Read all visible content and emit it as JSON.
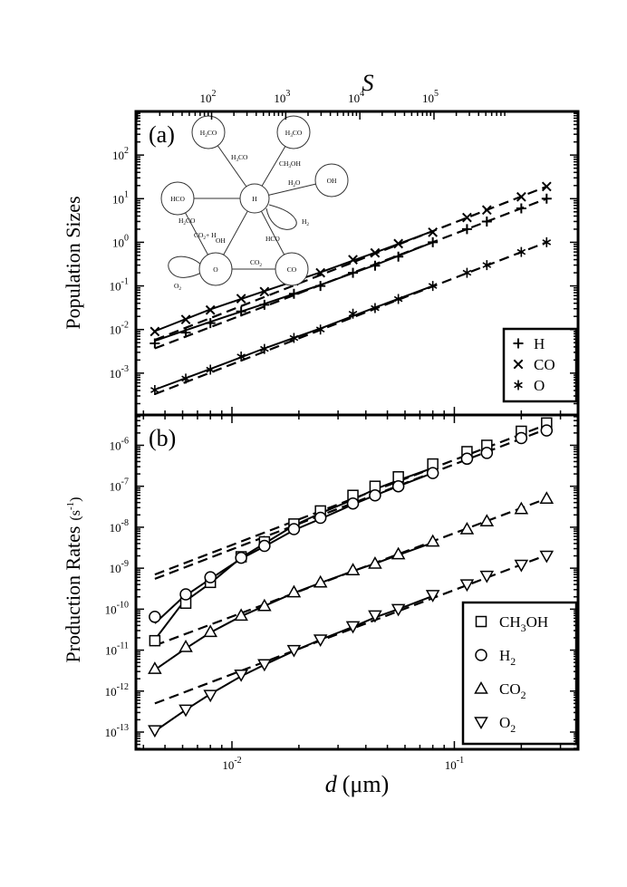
{
  "figure": {
    "top_axis_label": "S",
    "x_axis_label_symbol": "d",
    "x_axis_label_unit": "(μm)",
    "top_ticks": [
      {
        "value": 100,
        "base": "10",
        "exp": "2"
      },
      {
        "value": 1000,
        "base": "10",
        "exp": "3"
      },
      {
        "value": 10000,
        "base": "10",
        "exp": "4"
      },
      {
        "value": 100000,
        "base": "10",
        "exp": "5"
      }
    ],
    "bottom_ticks": [
      {
        "value": 0.01,
        "base": "10",
        "exp": "-2"
      },
      {
        "value": 0.1,
        "base": "10",
        "exp": "-1"
      }
    ]
  },
  "chart_data": [
    {
      "panel_label": "(a)",
      "type": "scatter",
      "xscale": "log",
      "yscale": "log",
      "xlim": [
        0.0037,
        0.36
      ],
      "ylim": [
        0.00011,
        1000
      ],
      "ylabel": "Population Sizes",
      "yticks": [
        {
          "value": 0.001,
          "base": "10",
          "exp": "-3"
        },
        {
          "value": 0.01,
          "base": "10",
          "exp": "-2"
        },
        {
          "value": 0.1,
          "base": "10",
          "exp": "-1"
        },
        {
          "value": 1,
          "base": "10",
          "exp": "0"
        },
        {
          "value": 10,
          "base": "10",
          "exp": "1"
        },
        {
          "value": 100,
          "base": "10",
          "exp": "2"
        }
      ],
      "legend_position": "bottom-right",
      "series": [
        {
          "name": "H",
          "marker": "plus",
          "x": [
            0.0045,
            0.0062,
            0.008,
            0.011,
            0.014,
            0.019,
            0.025,
            0.035,
            0.044,
            0.056,
            0.08,
            0.114,
            0.14,
            0.2,
            0.26
          ],
          "y": [
            0.0048,
            0.0085,
            0.014,
            0.026,
            0.037,
            0.066,
            0.1,
            0.2,
            0.29,
            0.47,
            1.0,
            2.0,
            3.0,
            6.0,
            10.0
          ]
        },
        {
          "name": "CO",
          "marker": "cross",
          "x": [
            0.0045,
            0.0062,
            0.008,
            0.011,
            0.014,
            0.019,
            0.025,
            0.035,
            0.044,
            0.056,
            0.08,
            0.114,
            0.14,
            0.2,
            0.26
          ],
          "y": [
            0.009,
            0.017,
            0.028,
            0.051,
            0.074,
            0.13,
            0.2,
            0.4,
            0.57,
            0.93,
            1.7,
            3.7,
            5.5,
            11.0,
            19.0
          ]
        },
        {
          "name": "O",
          "marker": "asterisk",
          "x": [
            0.0045,
            0.0062,
            0.008,
            0.011,
            0.014,
            0.019,
            0.025,
            0.035,
            0.044,
            0.056,
            0.08,
            0.114,
            0.14,
            0.2,
            0.26
          ],
          "y": [
            0.00041,
            0.00075,
            0.0012,
            0.0024,
            0.0036,
            0.0064,
            0.01,
            0.023,
            0.031,
            0.05,
            0.1,
            0.2,
            0.3,
            0.6,
            1.0
          ]
        }
      ],
      "solid_fits": [
        {
          "x": [
            0.0045,
            0.008,
            0.014,
            0.025,
            0.044,
            0.08
          ],
          "y": [
            0.0055,
            0.015,
            0.039,
            0.105,
            0.3,
            1.0
          ]
        },
        {
          "x": [
            0.0045,
            0.008,
            0.014,
            0.025,
            0.044,
            0.08
          ],
          "y": [
            0.0092,
            0.029,
            0.076,
            0.205,
            0.58,
            1.8
          ]
        },
        {
          "x": [
            0.0045,
            0.008,
            0.014,
            0.025,
            0.044,
            0.08
          ],
          "y": [
            0.00042,
            0.00125,
            0.0037,
            0.0106,
            0.032,
            0.1
          ]
        }
      ],
      "dashed_fits": [
        {
          "x": [
            0.0045,
            0.26
          ],
          "y": [
            0.0037,
            10.0
          ]
        },
        {
          "x": [
            0.0045,
            0.26
          ],
          "y": [
            0.0058,
            19.0
          ]
        },
        {
          "x": [
            0.0045,
            0.26
          ],
          "y": [
            0.00033,
            1.0
          ]
        }
      ]
    },
    {
      "panel_label": "(b)",
      "type": "scatter",
      "xscale": "log",
      "yscale": "log",
      "xlim": [
        0.0037,
        0.36
      ],
      "ylim": [
        3.8e-14,
        5.5e-06
      ],
      "ylabel": "Production Rates",
      "ylabel_unit_base": "(s",
      "ylabel_unit_exp": "-1",
      "ylabel_unit_close": ")",
      "yticks": [
        {
          "value": 1e-13,
          "base": "10",
          "exp": "-13"
        },
        {
          "value": 1e-12,
          "base": "10",
          "exp": "-12"
        },
        {
          "value": 1e-11,
          "base": "10",
          "exp": "-11"
        },
        {
          "value": 1e-10,
          "base": "10",
          "exp": "-10"
        },
        {
          "value": 1e-09,
          "base": "10",
          "exp": "-9"
        },
        {
          "value": 1e-08,
          "base": "10",
          "exp": "-8"
        },
        {
          "value": 1e-07,
          "base": "10",
          "exp": "-7"
        },
        {
          "value": 1e-06,
          "base": "10",
          "exp": "-6"
        }
      ],
      "legend_position": "bottom-right",
      "series": [
        {
          "name": "CH3OH",
          "legend_main": "CH",
          "legend_sub": "3",
          "legend_tail": "OH",
          "marker": "square",
          "x": [
            0.0045,
            0.0062,
            0.008,
            0.011,
            0.014,
            0.019,
            0.025,
            0.035,
            0.044,
            0.056,
            0.08,
            0.114,
            0.14,
            0.2,
            0.26
          ],
          "y": [
            1.7e-11,
            1.4e-10,
            4.5e-10,
            1.9e-09,
            4.4e-09,
            1.2e-08,
            2.5e-08,
            6e-08,
            1e-07,
            1.7e-07,
            3.5e-07,
            7e-07,
            1e-06,
            2.2e-06,
            3.5e-06
          ]
        },
        {
          "name": "H2",
          "legend_main": "H",
          "legend_sub": "2",
          "legend_tail": "",
          "marker": "circle",
          "x": [
            0.0045,
            0.0062,
            0.008,
            0.011,
            0.014,
            0.019,
            0.025,
            0.035,
            0.044,
            0.056,
            0.08,
            0.114,
            0.14,
            0.2,
            0.26
          ],
          "y": [
            6.5e-11,
            2.3e-10,
            6e-10,
            1.8e-09,
            3.5e-09,
            9e-09,
            1.7e-08,
            3.8e-08,
            6e-08,
            1e-07,
            2.1e-07,
            4.7e-07,
            6.5e-07,
            1.5e-06,
            2.3e-06
          ]
        },
        {
          "name": "CO2",
          "legend_main": "CO",
          "legend_sub": "2",
          "legend_tail": "",
          "marker": "triangle-up",
          "x": [
            0.0045,
            0.0062,
            0.008,
            0.011,
            0.014,
            0.019,
            0.025,
            0.035,
            0.044,
            0.056,
            0.08,
            0.114,
            0.14,
            0.2,
            0.26
          ],
          "y": [
            3.5e-12,
            1.2e-11,
            2.8e-11,
            7e-11,
            1.2e-10,
            2.6e-10,
            4.5e-10,
            9e-10,
            1.3e-09,
            2.2e-09,
            4.5e-09,
            9e-09,
            1.4e-08,
            2.8e-08,
            5e-08
          ]
        },
        {
          "name": "O2",
          "legend_main": "O",
          "legend_sub": "2",
          "legend_tail": "",
          "marker": "triangle-down",
          "x": [
            0.0045,
            0.0062,
            0.008,
            0.011,
            0.014,
            0.019,
            0.025,
            0.035,
            0.044,
            0.056,
            0.08,
            0.114,
            0.14,
            0.2,
            0.26
          ],
          "y": [
            1.1e-13,
            3.5e-13,
            8e-13,
            2.5e-12,
            4.5e-12,
            1e-11,
            1.8e-11,
            3.8e-11,
            7e-11,
            1e-10,
            2.2e-10,
            4e-10,
            6.5e-10,
            1.2e-09,
            2e-09
          ]
        }
      ],
      "solid_fits": [
        {
          "x": [
            0.0045,
            0.006,
            0.008,
            0.011,
            0.014,
            0.019,
            0.025,
            0.035,
            0.044,
            0.056,
            0.08
          ],
          "y": [
            1.8e-11,
            1.4e-10,
            4.3e-10,
            1.8e-09,
            4e-09,
            1.1e-08,
            2.2e-08,
            4.7e-08,
            8.5e-08,
            1.4e-07,
            2.8e-07
          ]
        },
        {
          "x": [
            0.0045,
            0.006,
            0.008,
            0.011,
            0.014,
            0.019,
            0.025,
            0.035,
            0.044,
            0.056,
            0.08
          ],
          "y": [
            4.5e-11,
            1.9e-10,
            5.5e-10,
            1.7e-09,
            3.4e-09,
            8.5e-09,
            1.6e-08,
            3.6e-08,
            6e-08,
            1e-07,
            2.1e-07
          ]
        },
        {
          "x": [
            0.0045,
            0.0062,
            0.008,
            0.011,
            0.014,
            0.019,
            0.025,
            0.035,
            0.044,
            0.056,
            0.08
          ],
          "y": [
            3.3e-12,
            1.1e-11,
            2.7e-11,
            6.7e-11,
            1.2e-10,
            2.5e-10,
            4.4e-10,
            8.5e-10,
            1.3e-09,
            2.1e-09,
            4.2e-09
          ]
        },
        {
          "x": [
            0.0045,
            0.0062,
            0.008,
            0.011,
            0.014,
            0.019,
            0.025,
            0.035,
            0.044,
            0.056,
            0.08
          ],
          "y": [
            1.05e-13,
            3.5e-13,
            8.5e-13,
            2.3e-12,
            4.4e-12,
            9.5e-12,
            1.8e-11,
            3.7e-11,
            6.3e-11,
            1e-10,
            2.1e-10
          ]
        }
      ],
      "dashed_fits": [
        {
          "x": [
            0.0045,
            0.26
          ],
          "y": [
            7e-10,
            3.2e-06
          ]
        },
        {
          "x": [
            0.0045,
            0.26
          ],
          "y": [
            5.5e-10,
            2.5e-06
          ]
        },
        {
          "x": [
            0.0045,
            0.26
          ],
          "y": [
            1.3e-11,
            5e-08
          ]
        },
        {
          "x": [
            0.0045,
            0.26
          ],
          "y": [
            5e-13,
            2.1e-09
          ]
        }
      ]
    }
  ],
  "network": {
    "nodes": [
      {
        "id": "H2CO",
        "main": "H",
        "sub": "2",
        "tail": "CO"
      },
      {
        "id": "H3CO",
        "main": "H",
        "sub": "3",
        "tail": "CO"
      },
      {
        "id": "HCO",
        "main": "HCO",
        "sub": "",
        "tail": ""
      },
      {
        "id": "H",
        "main": "H",
        "sub": "",
        "tail": ""
      },
      {
        "id": "OH",
        "main": "OH",
        "sub": "",
        "tail": ""
      },
      {
        "id": "O",
        "main": "O",
        "sub": "",
        "tail": ""
      },
      {
        "id": "CO",
        "main": "CO",
        "sub": "",
        "tail": ""
      }
    ],
    "edge_labels": [
      {
        "id": "h3co-edge",
        "main": "H",
        "sub": "3",
        "tail": "CO"
      },
      {
        "id": "ch3oh-edge",
        "main": "CH",
        "sub": "3",
        "tail": "OH"
      },
      {
        "id": "h2co-edge",
        "main": "H",
        "sub": "2",
        "tail": "CO"
      },
      {
        "id": "h2o-edge",
        "main": "H",
        "sub": "2",
        "tail": "O"
      },
      {
        "id": "h2-loop",
        "main": "H",
        "sub": "2",
        "tail": ""
      },
      {
        "id": "co2h-edge",
        "main": "CO",
        "sub": "2",
        "tail": "+ H"
      },
      {
        "id": "oh-edge",
        "main": "OH",
        "sub": "",
        "tail": ""
      },
      {
        "id": "hco-edge",
        "main": "HCO",
        "sub": "",
        "tail": ""
      },
      {
        "id": "co2-edge",
        "main": "CO",
        "sub": "2",
        "tail": ""
      },
      {
        "id": "o2-loop",
        "main": "O",
        "sub": "2",
        "tail": ""
      }
    ]
  }
}
